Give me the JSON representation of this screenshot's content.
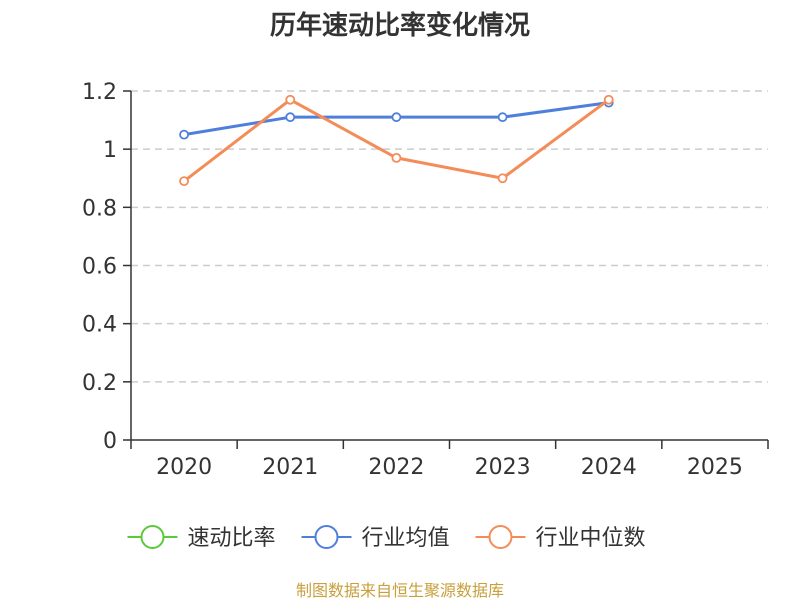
{
  "chart_data": {
    "type": "line",
    "title": "历年速动比率变化情况",
    "categories": [
      "2020",
      "2021",
      "2022",
      "2023",
      "2024",
      "2025"
    ],
    "ylim": [
      0,
      1.2
    ],
    "yticks": [
      "0",
      "0.2",
      "0.4",
      "0.6",
      "0.8",
      "1",
      "1.2"
    ],
    "grid": true,
    "legend_position": "bottom",
    "series": [
      {
        "name": "速动比率",
        "color": "#5cc93a",
        "values": [
          null,
          null,
          null,
          null,
          null,
          null
        ]
      },
      {
        "name": "行业均值",
        "color": "#4f7fdc",
        "values": [
          1.05,
          1.11,
          1.11,
          1.11,
          1.16,
          null
        ]
      },
      {
        "name": "行业中位数",
        "color": "#f48c58",
        "values": [
          0.89,
          1.17,
          0.97,
          0.9,
          1.17,
          null
        ]
      }
    ]
  },
  "footer": {
    "source": "制图数据来自恒生聚源数据库"
  }
}
